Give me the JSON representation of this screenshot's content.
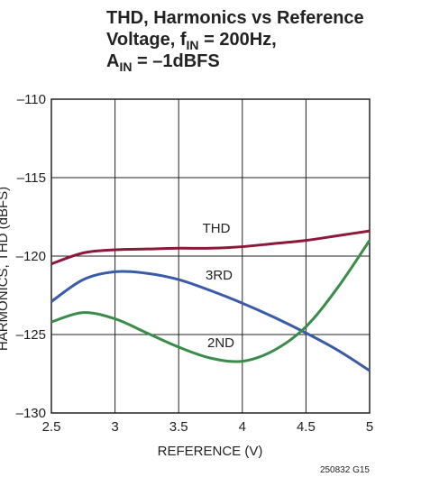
{
  "chart_data": {
    "type": "line",
    "title_lines": [
      [
        "THD, Harmonics vs Reference"
      ],
      [
        "Voltage, f",
        "IN",
        " = 200Hz,"
      ],
      [
        "A",
        "IN",
        " = –1dBFS"
      ]
    ],
    "x_label": "REFERENCE (V)",
    "y_label": "HARMONICS, THD (dBFS)",
    "note": "250832 G15",
    "x": [
      2.5,
      2.75,
      3.0,
      3.25,
      3.5,
      3.75,
      4.0,
      4.25,
      4.5,
      4.75,
      5.0
    ],
    "series": [
      {
        "name": "THD",
        "color": "#8b1a3a",
        "values": [
          -120.5,
          -119.8,
          -119.6,
          -119.55,
          -119.5,
          -119.5,
          -119.4,
          -119.2,
          -119.0,
          -118.7,
          -118.4
        ]
      },
      {
        "name": "3RD",
        "color": "#3a5ba8",
        "values": [
          -122.9,
          -121.5,
          -121.0,
          -121.1,
          -121.5,
          -122.2,
          -123.0,
          -123.9,
          -124.9,
          -126.0,
          -127.3
        ]
      },
      {
        "name": "2ND",
        "color": "#3a8c4a",
        "values": [
          -124.2,
          -123.6,
          -124.0,
          -124.9,
          -125.8,
          -126.5,
          -126.7,
          -126.0,
          -124.5,
          -122.0,
          -119.0
        ]
      }
    ],
    "xlim": [
      2.5,
      5
    ],
    "xticks": [
      2.5,
      3,
      3.5,
      4,
      4.5,
      5
    ],
    "ylim": [
      -130,
      -110
    ],
    "yticks": [
      {
        "value": -130,
        "label": "–130"
      },
      {
        "value": -125,
        "label": "–125"
      },
      {
        "value": -120,
        "label": "–120"
      },
      {
        "value": -115,
        "label": "–115"
      },
      {
        "value": -110,
        "label": "–110"
      }
    ],
    "grid": true
  }
}
